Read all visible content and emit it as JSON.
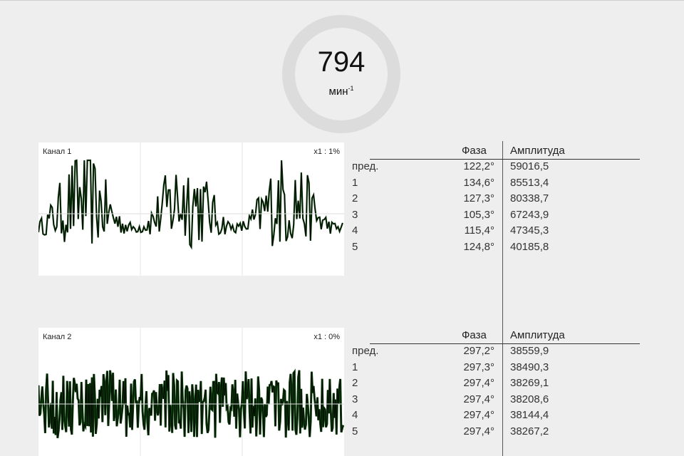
{
  "gauge": {
    "value": "794",
    "unit": "мин",
    "unit_exp": "-1"
  },
  "channels": [
    {
      "label": "Канал 1",
      "scale": "x1 : 1%",
      "color": "#0b3d0b",
      "table": {
        "headers": {
          "phase": "Фаза",
          "amplitude": "Амплитуда"
        },
        "rows": [
          {
            "label": "пред.",
            "phase": "122,2°",
            "amplitude": "59016,5"
          },
          {
            "label": "1",
            "phase": "134,6°",
            "amplitude": "85513,4"
          },
          {
            "label": "2",
            "phase": "127,3°",
            "amplitude": "80338,7"
          },
          {
            "label": "3",
            "phase": "105,3°",
            "amplitude": "67243,9"
          },
          {
            "label": "4",
            "phase": "115,4°",
            "amplitude": "47345,3"
          },
          {
            "label": "5",
            "phase": "124,8°",
            "amplitude": "40185,8"
          }
        ]
      }
    },
    {
      "label": "Канал 2",
      "scale": "x1 : 0%",
      "color": "#0b3d0b",
      "table": {
        "headers": {
          "phase": "Фаза",
          "amplitude": "Амплитуда"
        },
        "rows": [
          {
            "label": "пред.",
            "phase": "297,2°",
            "amplitude": "38559,9"
          },
          {
            "label": "1",
            "phase": "297,3°",
            "amplitude": "38490,3"
          },
          {
            "label": "2",
            "phase": "297,4°",
            "amplitude": "38269,1"
          },
          {
            "label": "3",
            "phase": "297,4°",
            "amplitude": "38208,6"
          },
          {
            "label": "4",
            "phase": "297,4°",
            "amplitude": "38144,4"
          },
          {
            "label": "5",
            "phase": "297,4°",
            "amplitude": "38267,2"
          }
        ]
      }
    }
  ]
}
